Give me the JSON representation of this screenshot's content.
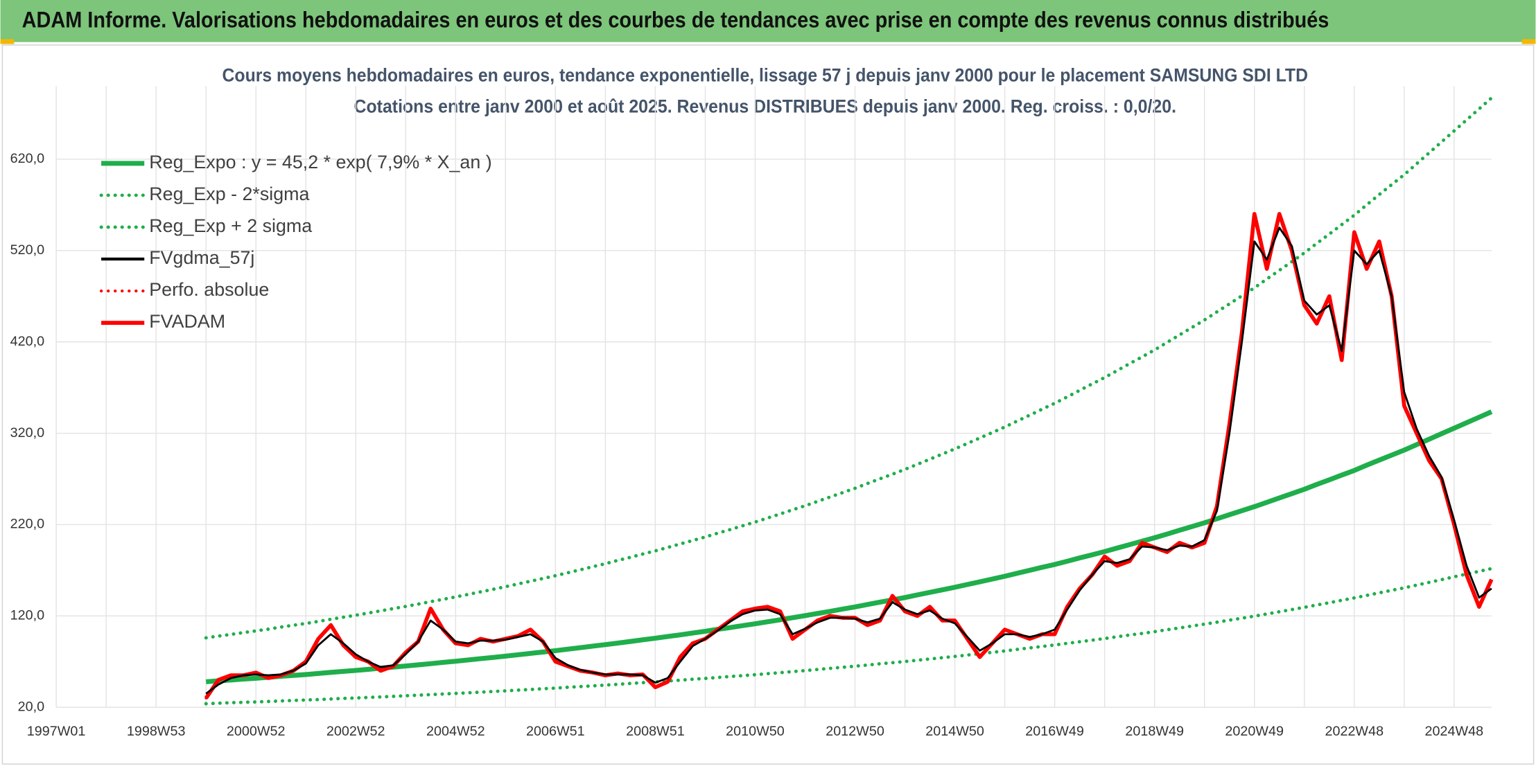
{
  "page_title": "ADAM Informe. Valorisations hebdomadaires en euros et des courbes de tendances avec prise en compte des revenus connus distribués",
  "chart_data": {
    "type": "line",
    "title": "Cours moyens hebdomadaires en euros, tendance exponentielle, lissage 57 j depuis janv 2000 pour le placement SAMSUNG SDI LTD",
    "subtitle": "Cotations entre janv 2000 et août 2025. Revenus DISTRIBUES depuis janv 2000. Reg. croiss. : 0,0/20.",
    "categories": [
      "1997W01",
      null,
      null,
      null,
      null,
      null,
      null,
      null,
      "1998W53",
      null,
      null,
      null,
      null,
      null,
      null,
      null,
      "2000W52",
      null,
      null,
      null,
      null,
      null,
      null,
      null,
      "2002W52",
      null,
      null,
      null,
      null,
      null,
      null,
      null,
      "2004W52",
      null,
      null,
      null,
      null,
      null,
      null,
      null,
      "2006W51",
      null,
      null,
      null,
      null,
      null,
      null,
      null,
      "2008W51",
      null,
      null,
      null,
      null,
      null,
      null,
      null,
      "2010W50",
      null,
      null,
      null,
      null,
      null,
      null,
      null,
      "2012W50",
      null,
      null,
      null,
      null,
      null,
      null,
      null,
      "2014W50",
      null,
      null,
      null,
      null,
      null,
      null,
      null,
      "2016W49",
      null,
      null,
      null,
      null,
      null,
      null,
      null,
      "2018W49",
      null,
      null,
      null,
      null,
      null,
      null,
      null,
      "2020W49",
      null,
      null,
      null,
      null,
      null,
      null,
      null,
      "2022W48",
      null,
      null,
      null,
      null,
      null,
      null,
      null,
      "2024W48",
      null,
      null,
      null
    ],
    "ylim": [
      20,
      700
    ],
    "yticks": [
      {
        "value": 20,
        "label": "20,0"
      },
      {
        "value": 120,
        "label": "120,0"
      },
      {
        "value": 220,
        "label": "220,0"
      },
      {
        "value": 320,
        "label": "320,0"
      },
      {
        "value": 420,
        "label": "420,0"
      },
      {
        "value": 520,
        "label": "520,0"
      },
      {
        "value": 620,
        "label": "620,0"
      }
    ],
    "grid": true,
    "legend": "upper-left",
    "series": [
      {
        "name": "Reg_Expo : y = 45,2 * exp( 7,9% *  X_an )",
        "color": "#1fae4b",
        "style": "solid",
        "values": [
          null,
          null,
          null,
          null,
          null,
          null,
          null,
          null,
          null,
          null,
          null,
          null,
          48.0,
          49.0,
          49.9,
          50.9,
          51.8,
          52.8,
          53.9,
          54.9,
          55.9,
          57.0,
          58.2,
          59.3,
          60.4,
          61.6,
          62.8,
          64.0,
          65.2,
          66.5,
          67.8,
          69.1,
          70.4,
          71.8,
          73.2,
          74.6,
          76.0,
          77.5,
          79.0,
          80.5,
          82.0,
          83.7,
          85.3,
          87.0,
          88.6,
          90.4,
          92.1,
          93.9,
          95.6,
          97.5,
          99.4,
          101.3,
          103.2,
          105.3,
          107.3,
          109.4,
          111.4,
          113.6,
          115.8,
          118.1,
          120.3,
          122.7,
          125.1,
          127.5,
          129.9,
          132.5,
          135.1,
          137.6,
          140.2,
          143.0,
          145.8,
          148.6,
          151.4,
          154.4,
          157.4,
          160.4,
          163.4,
          166.7,
          169.9,
          173.2,
          176.4,
          179.9,
          183.5,
          187.0,
          190.5,
          194.3,
          198.1,
          201.8,
          205.6,
          209.7,
          213.8,
          217.9,
          222.0,
          226.4,
          230.8,
          235.2,
          239.6,
          244.4,
          249.2,
          253.9,
          258.7,
          263.9,
          269.0,
          274.2,
          279.3,
          285.0,
          290.6,
          296.1,
          301.5,
          307.5,
          313.5,
          319.5,
          325.5,
          331.5,
          337.5,
          343.5
        ]
      },
      {
        "name": "Reg_Exp - 2*sigma",
        "color": "#1fae4b",
        "style": "dotted",
        "values": [
          null,
          null,
          null,
          null,
          null,
          null,
          null,
          null,
          null,
          null,
          null,
          null,
          24.0,
          24.5,
          25.0,
          25.5,
          25.9,
          26.4,
          27.0,
          27.5,
          28.0,
          28.5,
          29.1,
          29.7,
          30.2,
          30.8,
          31.4,
          32.0,
          32.6,
          33.3,
          33.9,
          34.6,
          35.2,
          35.9,
          36.6,
          37.3,
          38.0,
          38.8,
          39.5,
          40.3,
          41.0,
          41.9,
          42.7,
          43.5,
          44.3,
          45.2,
          46.1,
          47.0,
          47.8,
          48.8,
          49.7,
          50.7,
          51.6,
          52.7,
          53.7,
          54.7,
          55.7,
          56.8,
          57.9,
          59.1,
          60.2,
          61.4,
          62.6,
          63.8,
          65.0,
          66.3,
          67.6,
          68.8,
          70.1,
          71.5,
          72.9,
          74.3,
          75.7,
          77.2,
          78.7,
          80.2,
          81.7,
          83.4,
          85.0,
          86.6,
          88.2,
          90.0,
          91.8,
          93.5,
          95.3,
          97.2,
          99.1,
          100.9,
          102.8,
          104.9,
          106.9,
          109.0,
          111.0,
          113.2,
          115.4,
          117.6,
          119.8,
          122.2,
          124.6,
          127.0,
          129.4,
          132.0,
          134.5,
          137.1,
          139.7,
          142.5,
          145.3,
          148.1,
          150.8,
          153.8,
          156.8,
          159.8,
          162.8,
          165.8,
          168.8,
          171.8
        ]
      },
      {
        "name": "Reg_Exp + 2 sigma",
        "color": "#1fae4b",
        "style": "dotted",
        "values": [
          null,
          null,
          null,
          null,
          null,
          null,
          null,
          null,
          null,
          null,
          null,
          null,
          96.0,
          98.0,
          99.8,
          101.8,
          103.6,
          105.6,
          107.8,
          109.8,
          111.8,
          114.0,
          116.4,
          118.6,
          120.8,
          123.2,
          125.6,
          128.0,
          130.4,
          133.0,
          135.6,
          138.2,
          140.8,
          143.6,
          146.4,
          149.2,
          152.0,
          155.0,
          158.0,
          161.0,
          164.0,
          167.4,
          170.6,
          174.0,
          177.2,
          180.8,
          184.2,
          187.8,
          191.2,
          195.0,
          198.8,
          202.6,
          206.4,
          210.6,
          214.6,
          218.8,
          222.8,
          227.2,
          231.6,
          236.2,
          240.6,
          245.4,
          250.2,
          255.0,
          259.8,
          265.0,
          270.2,
          275.2,
          280.4,
          286.0,
          291.6,
          297.2,
          302.8,
          308.8,
          314.8,
          320.8,
          326.8,
          333.4,
          339.8,
          346.4,
          352.8,
          359.8,
          367.0,
          374.0,
          381.0,
          388.6,
          396.2,
          403.6,
          411.2,
          419.4,
          427.6,
          435.8,
          444.0,
          452.8,
          461.6,
          470.4,
          479.2,
          488.8,
          498.4,
          507.8,
          517.4,
          527.8,
          538.0,
          548.4,
          558.6,
          570.0,
          581.2,
          592.2,
          603.0,
          615.0,
          627.0,
          639.0,
          651.0,
          663.0,
          675.0,
          687.0
        ]
      },
      {
        "name": "FVgdma_57j",
        "color": "#000000",
        "style": "solid",
        "values": [
          null,
          null,
          null,
          null,
          null,
          null,
          null,
          null,
          null,
          null,
          null,
          null,
          35,
          45,
          52,
          55,
          56,
          55,
          56,
          60,
          68,
          88,
          100,
          90,
          78,
          70,
          64,
          66,
          78,
          92,
          115,
          105,
          92,
          90,
          93,
          93,
          94,
          97,
          100,
          92,
          74,
          66,
          61,
          58,
          56,
          56,
          56,
          55,
          47,
          52,
          70,
          87,
          95,
          104,
          114,
          122,
          126,
          127,
          122,
          100,
          106,
          113,
          118,
          118,
          117,
          113,
          117,
          135,
          127,
          122,
          126,
          117,
          112,
          97,
          82,
          90,
          100,
          100,
          97,
          100,
          105,
          127,
          148,
          165,
          180,
          178,
          182,
          196,
          195,
          192,
          197,
          196,
          203,
          235,
          320,
          420,
          530,
          510,
          545,
          525,
          465,
          450,
          460,
          410,
          520,
          505,
          520,
          470,
          365,
          325,
          295,
          272,
          225,
          175,
          140,
          150
        ]
      },
      {
        "name": "Perfo. absolue",
        "color": "#ff0000",
        "style": "dotted",
        "values": [
          null,
          null,
          null,
          null,
          null,
          null,
          null,
          null,
          null,
          null,
          null,
          null,
          30,
          50,
          55,
          55,
          58,
          52,
          55,
          60,
          70,
          95,
          110,
          88,
          75,
          70,
          60,
          65,
          80,
          92,
          128,
          105,
          90,
          88,
          95,
          92,
          95,
          98,
          105,
          92,
          70,
          65,
          60,
          58,
          55,
          57,
          55,
          56,
          42,
          48,
          75,
          90,
          95,
          105,
          115,
          125,
          128,
          130,
          125,
          95,
          105,
          115,
          120,
          118,
          118,
          110,
          115,
          142,
          125,
          120,
          130,
          115,
          115,
          95,
          75,
          90,
          105,
          100,
          95,
          100,
          100,
          130,
          150,
          165,
          185,
          175,
          180,
          200,
          195,
          190,
          200,
          195,
          200,
          240,
          330,
          430,
          560,
          500,
          560,
          520,
          460,
          440,
          470,
          400,
          540,
          500,
          530,
          470,
          350,
          320,
          290,
          270,
          220,
          165,
          130,
          160
        ]
      },
      {
        "name": "FVADAM",
        "color": "#ff0000",
        "style": "solid",
        "values": [
          null,
          null,
          null,
          null,
          null,
          null,
          null,
          null,
          null,
          null,
          null,
          null,
          30,
          50,
          55,
          55,
          58,
          52,
          55,
          60,
          70,
          95,
          110,
          88,
          75,
          70,
          60,
          65,
          80,
          92,
          128,
          105,
          90,
          88,
          95,
          92,
          95,
          98,
          105,
          92,
          70,
          65,
          60,
          58,
          55,
          57,
          55,
          56,
          42,
          48,
          75,
          90,
          95,
          105,
          115,
          125,
          128,
          130,
          125,
          95,
          105,
          115,
          120,
          118,
          118,
          110,
          115,
          142,
          125,
          120,
          130,
          115,
          115,
          95,
          75,
          90,
          105,
          100,
          95,
          100,
          100,
          130,
          150,
          165,
          185,
          175,
          180,
          200,
          195,
          190,
          200,
          195,
          200,
          240,
          330,
          430,
          560,
          500,
          560,
          520,
          460,
          440,
          470,
          400,
          540,
          500,
          530,
          470,
          350,
          320,
          290,
          270,
          220,
          165,
          130,
          160
        ]
      }
    ]
  }
}
